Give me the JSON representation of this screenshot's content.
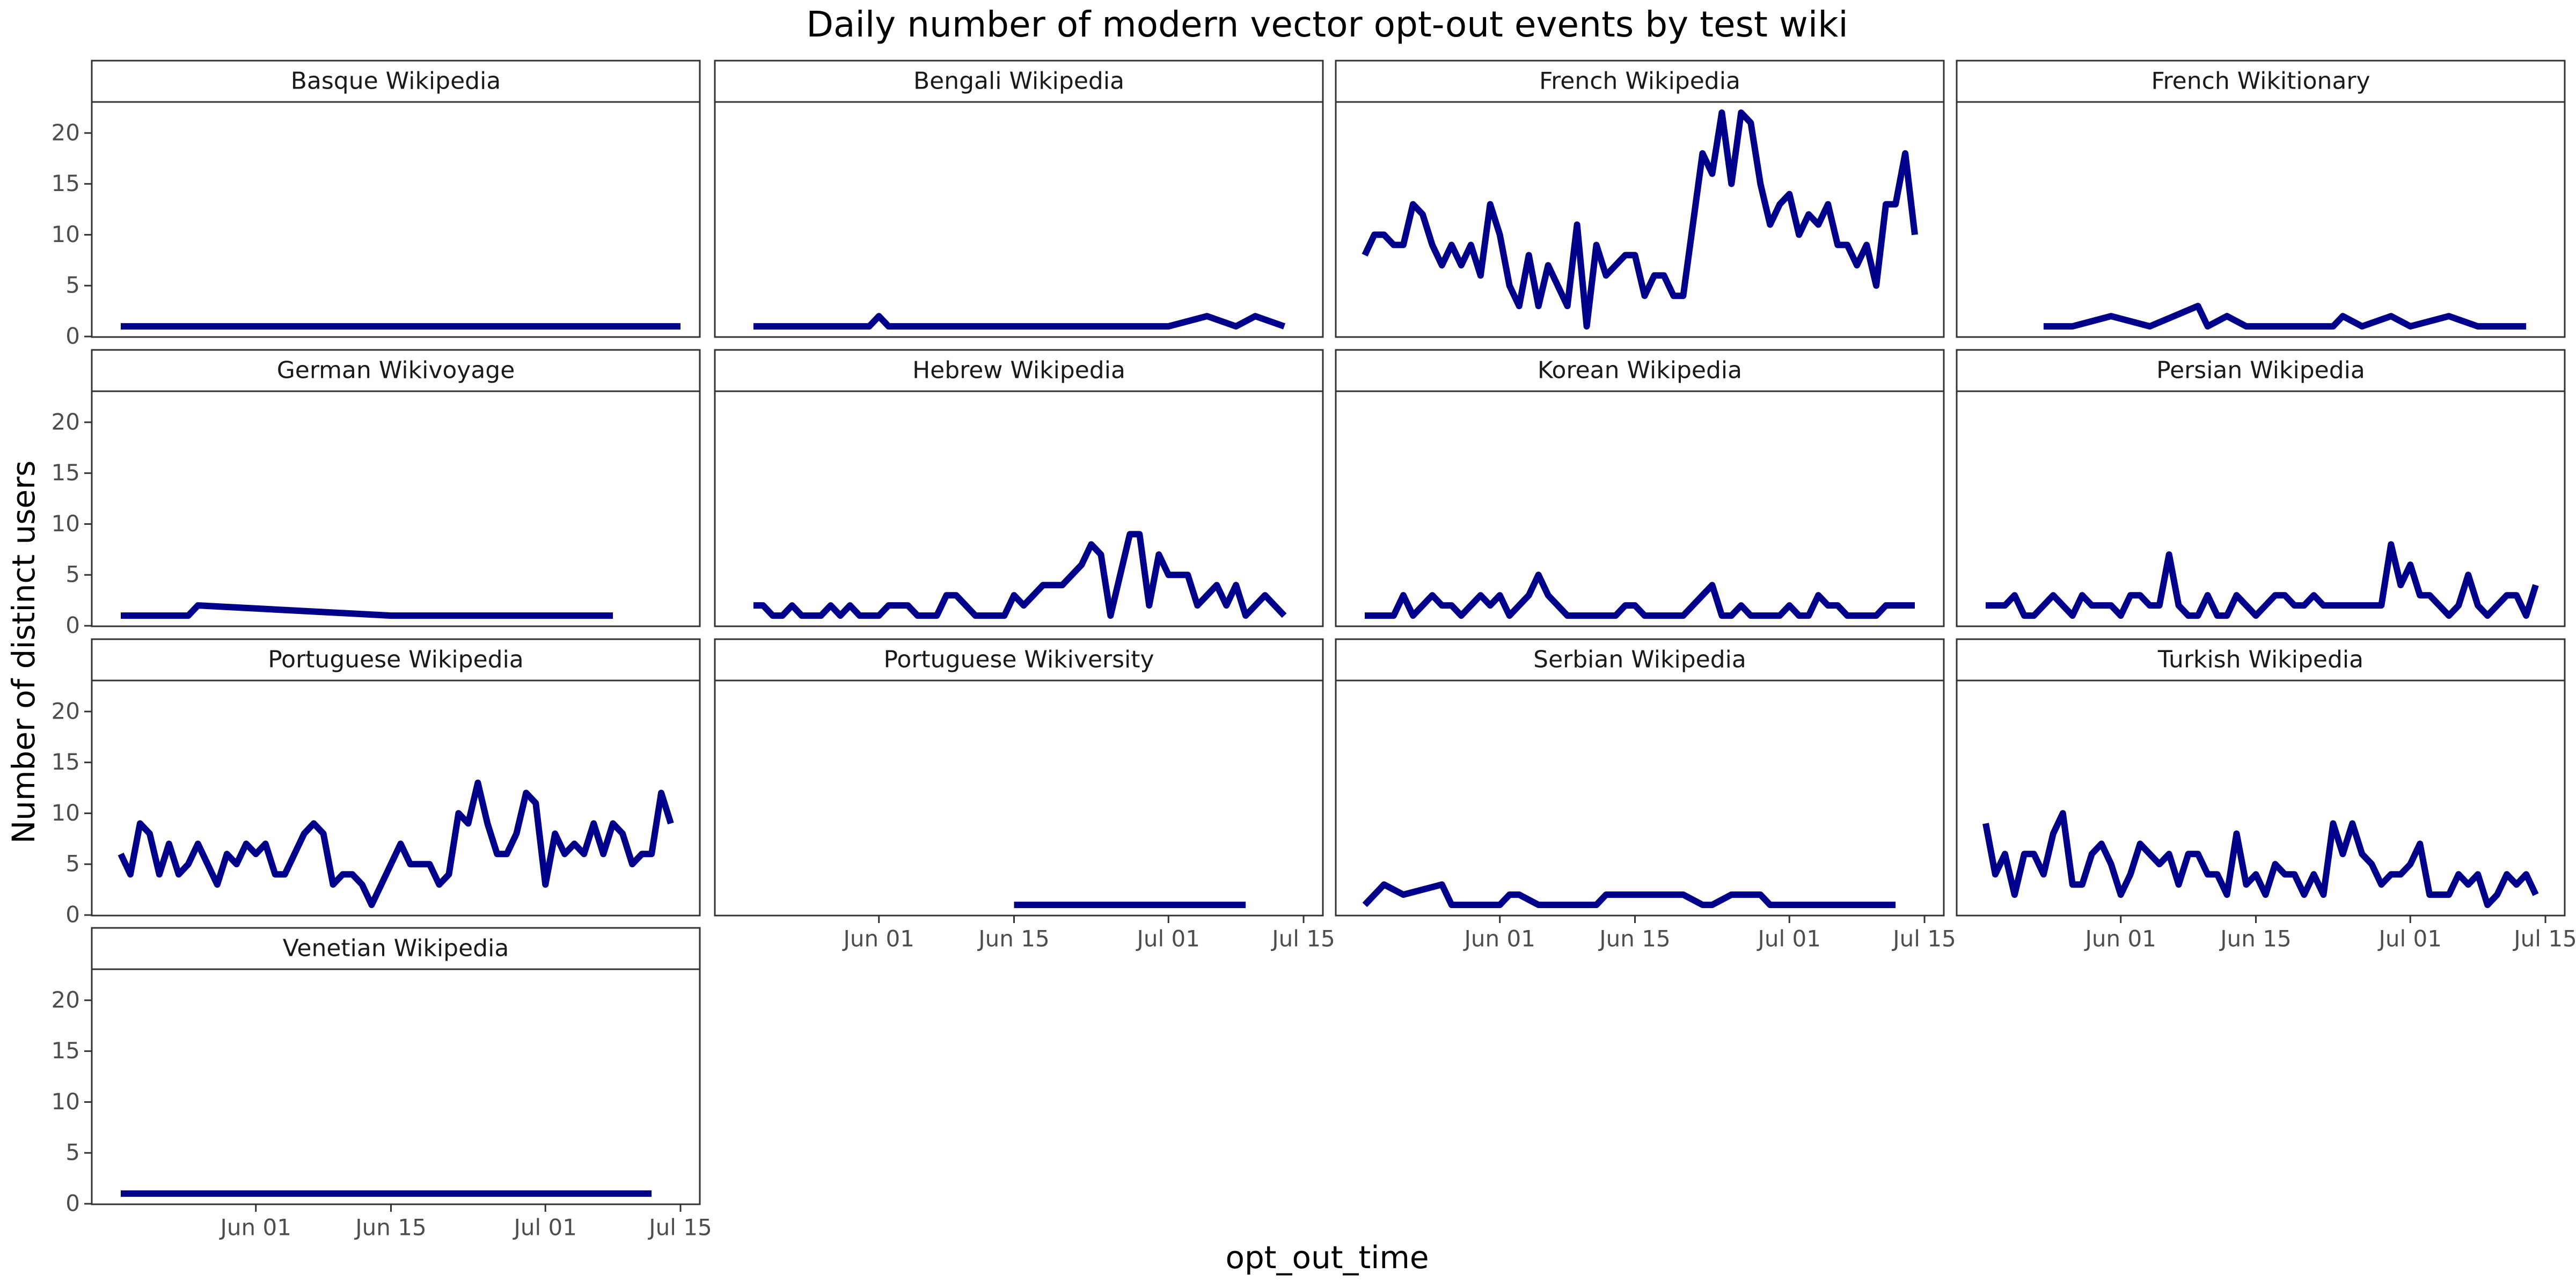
{
  "chart_data": {
    "type": "line",
    "title": "Daily number of modern vector opt-out events by test wiki",
    "x_label": "opt_out_time",
    "y_label": "Number of distinct users",
    "color": "#00008b",
    "xlim": [
      "05-15",
      "07-17"
    ],
    "ylim": [
      -0.05,
      23.05
    ],
    "xticks": [
      {
        "value": "06-01",
        "label": "Jun 01"
      },
      {
        "value": "06-15",
        "label": "Jun 15"
      },
      {
        "value": "07-01",
        "label": "Jul 01"
      },
      {
        "value": "07-15",
        "label": "Jul 15"
      }
    ],
    "yticks": [
      0,
      5,
      10,
      15,
      20
    ],
    "facets": [
      {
        "title": "Basque Wikipedia",
        "x": [
          "05-18",
          "07-15"
        ],
        "values": [
          1,
          1
        ]
      },
      {
        "title": "Bengali Wikipedia",
        "x": [
          "05-19",
          "05-31",
          "06-01",
          "06-02",
          "07-01",
          "07-05",
          "07-08",
          "07-10",
          "07-13"
        ],
        "values": [
          1,
          1,
          2,
          1,
          1,
          2,
          1,
          2,
          1
        ]
      },
      {
        "title": "French Wikipedia",
        "x": [
          "05-18",
          "05-19",
          "05-20",
          "05-21",
          "05-22",
          "05-23",
          "05-24",
          "05-25",
          "05-26",
          "05-27",
          "05-28",
          "05-29",
          "05-30",
          "05-31",
          "06-01",
          "06-02",
          "06-03",
          "06-04",
          "06-05",
          "06-06",
          "06-07",
          "06-08",
          "06-09",
          "06-10",
          "06-11",
          "06-12",
          "06-13",
          "06-14",
          "06-15",
          "06-16",
          "06-17",
          "06-18",
          "06-19",
          "06-20",
          "06-21",
          "06-22",
          "06-23",
          "06-24",
          "06-25",
          "06-26",
          "06-27",
          "06-28",
          "06-29",
          "06-30",
          "07-01",
          "07-02",
          "07-03",
          "07-04",
          "07-05",
          "07-06",
          "07-07",
          "07-08",
          "07-09",
          "07-10",
          "07-11",
          "07-12",
          "07-13",
          "07-14"
        ],
        "values": [
          8,
          10,
          10,
          9,
          9,
          13,
          12,
          9,
          7,
          9,
          7,
          9,
          6,
          13,
          10,
          5,
          3,
          8,
          3,
          7,
          5,
          3,
          11,
          1,
          9,
          6,
          7,
          8,
          8,
          4,
          6,
          6,
          4,
          4,
          11,
          18,
          16,
          22,
          15,
          22,
          21,
          15,
          11,
          13,
          14,
          10,
          12,
          11,
          13,
          9,
          9,
          7,
          9,
          5,
          13,
          13,
          18,
          10
        ]
      },
      {
        "title": "French Wikitionary",
        "x": [
          "05-24",
          "05-27",
          "05-31",
          "06-04",
          "06-09",
          "06-10",
          "06-12",
          "06-14",
          "06-23",
          "06-24",
          "06-26",
          "06-29",
          "07-01",
          "07-05",
          "07-08",
          "07-13"
        ],
        "values": [
          1,
          1,
          2,
          1,
          3,
          1,
          2,
          1,
          1,
          2,
          1,
          2,
          1,
          2,
          1,
          1
        ]
      },
      {
        "title": "German Wikivoyage",
        "x": [
          "05-18",
          "05-25",
          "05-26",
          "06-15",
          "07-08"
        ],
        "values": [
          1,
          1,
          2,
          1,
          1
        ]
      },
      {
        "title": "Hebrew Wikipedia",
        "x": [
          "05-19",
          "05-20",
          "05-21",
          "05-22",
          "05-23",
          "05-24",
          "05-25",
          "05-26",
          "05-27",
          "05-28",
          "05-29",
          "05-30",
          "05-31",
          "06-01",
          "06-02",
          "06-03",
          "06-04",
          "06-05",
          "06-06",
          "06-07",
          "06-08",
          "06-09",
          "06-10",
          "06-11",
          "06-12",
          "06-13",
          "06-14",
          "06-15",
          "06-16",
          "06-17",
          "06-18",
          "06-19",
          "06-20",
          "06-21",
          "06-22",
          "06-23",
          "06-24",
          "06-25",
          "06-26",
          "06-27",
          "06-28",
          "06-29",
          "06-30",
          "07-01",
          "07-02",
          "07-03",
          "07-04",
          "07-05",
          "07-06",
          "07-07",
          "07-08",
          "07-09",
          "07-10",
          "07-11",
          "07-12",
          "07-13"
        ],
        "values": [
          2,
          2,
          1,
          1,
          2,
          1,
          1,
          1,
          2,
          1,
          2,
          1,
          1,
          1,
          2,
          2,
          2,
          1,
          1,
          1,
          3,
          3,
          2,
          1,
          1,
          1,
          1,
          3,
          2,
          3,
          4,
          4,
          4,
          5,
          6,
          8,
          7,
          1,
          5,
          9,
          9,
          2,
          7,
          5,
          5,
          5,
          2,
          3,
          4,
          2,
          4,
          1,
          2,
          3,
          2,
          1
        ]
      },
      {
        "title": "Korean Wikipedia",
        "x": [
          "05-18",
          "05-19",
          "05-20",
          "05-21",
          "05-22",
          "05-23",
          "05-24",
          "05-25",
          "05-26",
          "05-27",
          "05-28",
          "05-29",
          "05-30",
          "05-31",
          "06-01",
          "06-02",
          "06-03",
          "06-04",
          "06-05",
          "06-06",
          "06-07",
          "06-08",
          "06-09",
          "06-10",
          "06-11",
          "06-12",
          "06-13",
          "06-14",
          "06-15",
          "06-16",
          "06-17",
          "06-18",
          "06-19",
          "06-20",
          "06-21",
          "06-22",
          "06-23",
          "06-24",
          "06-25",
          "06-26",
          "06-27",
          "06-28",
          "06-29",
          "06-30",
          "07-01",
          "07-02",
          "07-03",
          "07-04",
          "07-05",
          "07-06",
          "07-07",
          "07-08",
          "07-09",
          "07-10",
          "07-11",
          "07-12",
          "07-13",
          "07-14"
        ],
        "values": [
          1,
          1,
          1,
          1,
          3,
          1,
          2,
          3,
          2,
          2,
          1,
          2,
          3,
          2,
          3,
          1,
          2,
          3,
          5,
          3,
          2,
          1,
          1,
          1,
          1,
          1,
          1,
          2,
          2,
          1,
          1,
          1,
          1,
          1,
          2,
          3,
          4,
          1,
          1,
          2,
          1,
          1,
          1,
          1,
          2,
          1,
          1,
          3,
          2,
          2,
          1,
          1,
          1,
          1,
          2,
          2,
          2,
          2
        ]
      },
      {
        "title": "Persian Wikipedia",
        "x": [
          "05-18",
          "05-19",
          "05-20",
          "05-21",
          "05-22",
          "05-23",
          "05-24",
          "05-25",
          "05-26",
          "05-27",
          "05-28",
          "05-29",
          "05-30",
          "05-31",
          "06-01",
          "06-02",
          "06-03",
          "06-04",
          "06-05",
          "06-06",
          "06-07",
          "06-08",
          "06-09",
          "06-10",
          "06-11",
          "06-12",
          "06-13",
          "06-14",
          "06-15",
          "06-16",
          "06-17",
          "06-18",
          "06-19",
          "06-20",
          "06-21",
          "06-22",
          "06-23",
          "06-24",
          "06-25",
          "06-26",
          "06-27",
          "06-28",
          "06-29",
          "06-30",
          "07-01",
          "07-02",
          "07-03",
          "07-04",
          "07-05",
          "07-06",
          "07-07",
          "07-08",
          "07-09",
          "07-10",
          "07-11",
          "07-12",
          "07-13",
          "07-14"
        ],
        "values": [
          2,
          2,
          2,
          3,
          1,
          1,
          2,
          3,
          2,
          1,
          3,
          2,
          2,
          2,
          1,
          3,
          3,
          2,
          2,
          7,
          2,
          1,
          1,
          3,
          1,
          1,
          3,
          2,
          1,
          2,
          3,
          3,
          2,
          2,
          3,
          2,
          2,
          2,
          2,
          2,
          2,
          2,
          8,
          4,
          6,
          3,
          3,
          2,
          1,
          2,
          5,
          2,
          1,
          2,
          3,
          3,
          1,
          4
        ]
      },
      {
        "title": "Portuguese Wikipedia",
        "x": [
          "05-18",
          "05-19",
          "05-20",
          "05-21",
          "05-22",
          "05-23",
          "05-24",
          "05-25",
          "05-26",
          "05-27",
          "05-28",
          "05-29",
          "05-30",
          "05-31",
          "06-01",
          "06-02",
          "06-03",
          "06-04",
          "06-05",
          "06-06",
          "06-07",
          "06-08",
          "06-09",
          "06-10",
          "06-11",
          "06-12",
          "06-13",
          "06-14",
          "06-15",
          "06-16",
          "06-17",
          "06-18",
          "06-19",
          "06-20",
          "06-21",
          "06-22",
          "06-23",
          "06-24",
          "06-25",
          "06-26",
          "06-27",
          "06-28",
          "06-29",
          "06-30",
          "07-01",
          "07-02",
          "07-03",
          "07-04",
          "07-05",
          "07-06",
          "07-07",
          "07-08",
          "07-09",
          "07-10",
          "07-11",
          "07-12",
          "07-13",
          "07-14"
        ],
        "values": [
          6,
          4,
          9,
          8,
          4,
          7,
          4,
          5,
          7,
          5,
          3,
          6,
          5,
          7,
          6,
          7,
          4,
          4,
          6,
          8,
          9,
          8,
          3,
          4,
          4,
          3,
          1,
          3,
          5,
          7,
          5,
          5,
          5,
          3,
          4,
          10,
          9,
          13,
          9,
          6,
          6,
          8,
          12,
          11,
          3,
          8,
          6,
          7,
          6,
          9,
          6,
          9,
          8,
          5,
          6,
          6,
          12,
          9
        ]
      },
      {
        "title": "Portuguese Wikiversity",
        "x": [
          "06-15",
          "07-09"
        ],
        "values": [
          1,
          1
        ]
      },
      {
        "title": "Serbian Wikipedia",
        "x": [
          "05-18",
          "05-20",
          "05-22",
          "05-26",
          "05-27",
          "06-01",
          "06-02",
          "06-03",
          "06-05",
          "06-11",
          "06-12",
          "06-20",
          "06-22",
          "06-23",
          "06-25",
          "06-28",
          "06-29",
          "07-12"
        ],
        "values": [
          1,
          3,
          2,
          3,
          1,
          1,
          2,
          2,
          1,
          1,
          2,
          2,
          1,
          1,
          2,
          2,
          1,
          1
        ]
      },
      {
        "title": "Turkish Wikipedia",
        "x": [
          "05-18",
          "05-19",
          "05-20",
          "05-21",
          "05-22",
          "05-23",
          "05-24",
          "05-25",
          "05-26",
          "05-27",
          "05-28",
          "05-29",
          "05-30",
          "05-31",
          "06-01",
          "06-02",
          "06-03",
          "06-04",
          "06-05",
          "06-06",
          "06-07",
          "06-08",
          "06-09",
          "06-10",
          "06-11",
          "06-12",
          "06-13",
          "06-14",
          "06-15",
          "06-16",
          "06-17",
          "06-18",
          "06-19",
          "06-20",
          "06-21",
          "06-22",
          "06-23",
          "06-24",
          "06-25",
          "06-26",
          "06-27",
          "06-28",
          "06-29",
          "06-30",
          "07-01",
          "07-02",
          "07-03",
          "07-04",
          "07-05",
          "07-06",
          "07-07",
          "07-08",
          "07-09",
          "07-10",
          "07-11",
          "07-12",
          "07-13",
          "07-14"
        ],
        "values": [
          9,
          4,
          6,
          2,
          6,
          6,
          4,
          8,
          10,
          3,
          3,
          6,
          7,
          5,
          2,
          4,
          7,
          6,
          5,
          6,
          3,
          6,
          6,
          4,
          4,
          2,
          8,
          3,
          4,
          2,
          5,
          4,
          4,
          2,
          4,
          2,
          9,
          6,
          9,
          6,
          5,
          3,
          4,
          4,
          5,
          7,
          2,
          2,
          2,
          4,
          3,
          4,
          1,
          2,
          4,
          3,
          4,
          2
        ]
      },
      {
        "title": "Venetian Wikipedia",
        "x": [
          "05-18",
          "07-12"
        ],
        "values": [
          1,
          1
        ]
      }
    ]
  }
}
